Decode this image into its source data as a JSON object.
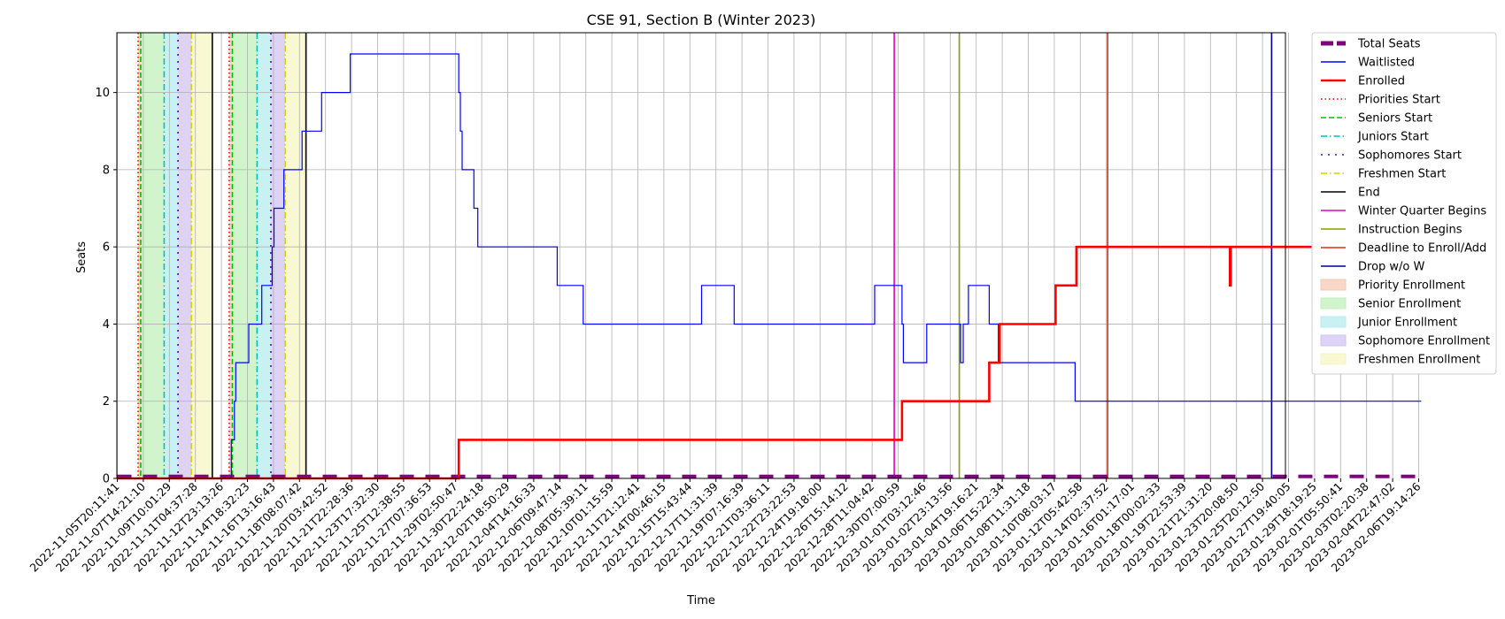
{
  "chart_data": {
    "type": "line",
    "title": "CSE 91, Section B (Winter 2023)",
    "xlabel": "Time",
    "ylabel": "Seats",
    "ylim": [
      0,
      11.55
    ],
    "y_ticks": [
      0,
      2,
      4,
      6,
      8,
      10
    ],
    "grid": true,
    "legend_position": "outside-right",
    "x_ticks": [
      "2022-11-05T20:11:41",
      "2022-11-07T14:21:10",
      "2022-11-09T10:01:29",
      "2022-11-11T04:37:28",
      "2022-11-12T23:13:26",
      "2022-11-14T18:32:23",
      "2022-11-16T13:16:43",
      "2022-11-18T08:07:42",
      "2022-11-20T03:42:52",
      "2022-11-21T22:28:36",
      "2022-11-23T17:32:30",
      "2022-11-25T12:38:55",
      "2022-11-27T07:36:53",
      "2022-11-29T02:50:47",
      "2022-11-30T22:24:18",
      "2022-12-02T18:50:29",
      "2022-12-04T14:16:33",
      "2022-12-06T09:47:14",
      "2022-12-08T05:39:11",
      "2022-12-10T01:15:59",
      "2022-12-11T21:12:41",
      "2022-12-14T00:46:15",
      "2022-12-15T15:43:44",
      "2022-12-17T11:31:39",
      "2022-12-19T07:16:39",
      "2022-12-21T03:36:11",
      "2022-12-22T23:22:53",
      "2022-12-24T19:18:00",
      "2022-12-26T15:14:12",
      "2022-12-28T11:04:42",
      "2022-12-30T07:00:59",
      "2023-01-01T03:12:46",
      "2023-01-02T23:13:56",
      "2023-01-04T19:16:21",
      "2023-01-06T15:22:34",
      "2023-01-08T11:31:18",
      "2023-01-10T08:03:17",
      "2023-01-12T05:42:58",
      "2023-01-14T02:37:52",
      "2023-01-16T01:17:01",
      "2023-01-18T00:02:33",
      "2023-01-19T22:53:39",
      "2023-01-21T21:31:20",
      "2023-01-23T20:08:50",
      "2023-01-25T20:12:50",
      "2023-01-27T19:40:05",
      "2023-01-29T18:19:25",
      "2023-02-01T05:50:41",
      "2023-02-03T02:20:38",
      "2023-02-04T22:47:02",
      "2023-02-06T19:14:26"
    ],
    "series": [
      {
        "name": "Total Seats",
        "color": "#800080",
        "style": "dashed-thick",
        "points": [
          [
            0,
            0.05
          ],
          [
            50.1,
            0.05
          ]
        ]
      },
      {
        "name": "Waitlisted",
        "color": "#0000ff",
        "style": "solid-thin",
        "points": [
          [
            0,
            0
          ],
          [
            4.38,
            0
          ],
          [
            4.38,
            1
          ],
          [
            4.5,
            1
          ],
          [
            4.5,
            2
          ],
          [
            4.55,
            2
          ],
          [
            4.55,
            3
          ],
          [
            5.05,
            3
          ],
          [
            5.05,
            4
          ],
          [
            5.55,
            4
          ],
          [
            5.55,
            5
          ],
          [
            5.95,
            5
          ],
          [
            5.95,
            6
          ],
          [
            6.02,
            6
          ],
          [
            6.02,
            7
          ],
          [
            6.4,
            7
          ],
          [
            6.4,
            8
          ],
          [
            7.1,
            8
          ],
          [
            7.1,
            9
          ],
          [
            7.85,
            9
          ],
          [
            7.85,
            10
          ],
          [
            8.95,
            10
          ],
          [
            8.95,
            11
          ],
          [
            13.12,
            11
          ],
          [
            13.12,
            10
          ],
          [
            13.18,
            10
          ],
          [
            13.18,
            9
          ],
          [
            13.25,
            9
          ],
          [
            13.25,
            8
          ],
          [
            13.7,
            8
          ],
          [
            13.7,
            7
          ],
          [
            13.85,
            7
          ],
          [
            13.85,
            6
          ],
          [
            16.9,
            6
          ],
          [
            16.9,
            5
          ],
          [
            17.9,
            5
          ],
          [
            17.9,
            4
          ],
          [
            22.45,
            4
          ],
          [
            22.45,
            5
          ],
          [
            23.7,
            5
          ],
          [
            23.7,
            4
          ],
          [
            29.1,
            4
          ],
          [
            29.1,
            5
          ],
          [
            30.15,
            5
          ],
          [
            30.15,
            4
          ],
          [
            30.2,
            4
          ],
          [
            30.2,
            3
          ],
          [
            31.1,
            3
          ],
          [
            31.1,
            4
          ],
          [
            32.4,
            4
          ],
          [
            32.4,
            3
          ],
          [
            32.5,
            3
          ],
          [
            32.5,
            4
          ],
          [
            32.7,
            4
          ],
          [
            32.7,
            5
          ],
          [
            33.5,
            5
          ],
          [
            33.5,
            4
          ],
          [
            33.85,
            4
          ],
          [
            33.85,
            3
          ],
          [
            36.8,
            3
          ],
          [
            36.8,
            2
          ],
          [
            50.1,
            2
          ]
        ]
      },
      {
        "name": "Enrolled",
        "color": "#ff0000",
        "style": "solid-thick",
        "points": [
          [
            0,
            0
          ],
          [
            13.12,
            0
          ],
          [
            13.12,
            1
          ],
          [
            30.15,
            1
          ],
          [
            30.15,
            2
          ],
          [
            33.5,
            2
          ],
          [
            33.5,
            3
          ],
          [
            33.9,
            3
          ],
          [
            33.9,
            4
          ],
          [
            36.05,
            4
          ],
          [
            36.05,
            5
          ],
          [
            36.85,
            5
          ],
          [
            36.85,
            6
          ],
          [
            42.75,
            6
          ],
          [
            42.75,
            5
          ],
          [
            42.78,
            5
          ],
          [
            42.78,
            6
          ],
          [
            49.85,
            6
          ],
          [
            49.85,
            7
          ],
          [
            50.1,
            7
          ]
        ]
      }
    ],
    "event_lines": [
      {
        "name": "Priorities Start",
        "color": "#ff0000",
        "dash": "dotted",
        "x": [
          0.8,
          4.3
        ]
      },
      {
        "name": "Seniors Start",
        "color": "#00c000",
        "dash": "dashed",
        "x": [
          0.9,
          4.42
        ]
      },
      {
        "name": "Juniors Start",
        "color": "#00bfbf",
        "dash": "dashdot",
        "x": [
          1.8,
          5.37
        ]
      },
      {
        "name": "Sophomores Start",
        "color": "#6000c0",
        "dash": "loosedot",
        "x": [
          2.33,
          5.9
        ]
      },
      {
        "name": "Freshmen Start",
        "color": "#d8d000",
        "dash": "dashdot",
        "x": [
          2.85,
          6.45
        ]
      },
      {
        "name": "End",
        "color": "#000000",
        "dash": "solid",
        "x": [
          3.65,
          7.25
        ]
      },
      {
        "name": "Winter Quarter Begins",
        "color": "#e000c0",
        "dash": "solid",
        "x": [
          29.85
        ]
      },
      {
        "name": "Instruction Begins",
        "color": "#80a000",
        "dash": "solid",
        "x": [
          32.35
        ]
      },
      {
        "name": "Deadline to Enroll/Add",
        "color": "#e03010",
        "dash": "solid",
        "x": [
          38.05
        ]
      },
      {
        "name": "Drop w/o W",
        "color": "#000090",
        "dash": "solid",
        "x": [
          44.35
        ]
      }
    ],
    "enrollment_periods": [
      {
        "name": "Priority Enrollment",
        "color": "#f6c9b6",
        "ranges": [
          [
            0.8,
            0.9
          ],
          [
            4.3,
            4.42
          ]
        ]
      },
      {
        "name": "Senior Enrollment",
        "color": "#c2f0bc",
        "ranges": [
          [
            0.9,
            1.8
          ],
          [
            4.42,
            5.37
          ]
        ]
      },
      {
        "name": "Junior Enrollment",
        "color": "#b8ecec",
        "ranges": [
          [
            1.8,
            2.33
          ],
          [
            5.37,
            5.9
          ]
        ]
      },
      {
        "name": "Sophomore Enrollment",
        "color": "#d2c4f2",
        "ranges": [
          [
            2.33,
            2.85
          ],
          [
            5.9,
            6.45
          ]
        ]
      },
      {
        "name": "Freshmen Enrollment",
        "color": "#f5f5c4",
        "ranges": [
          [
            2.85,
            3.65
          ],
          [
            6.45,
            7.25
          ]
        ]
      }
    ]
  }
}
